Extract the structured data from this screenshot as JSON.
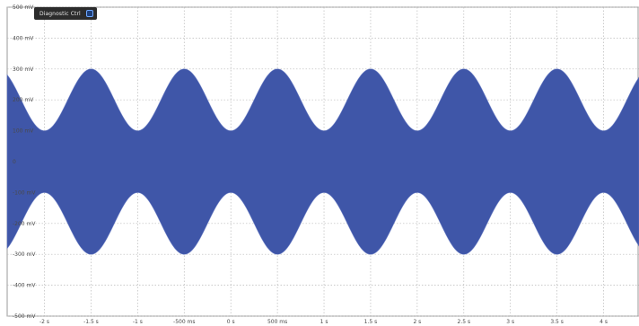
{
  "badge": {
    "label": "Diagnostic Ctrl",
    "icon": "square-outline-icon"
  },
  "colors": {
    "signal": "#3f56a8",
    "grid": "#b9b9b9",
    "badge_bg": "#2c2c2c",
    "badge_icon": "#6fa8ff"
  },
  "chart_data": {
    "type": "area",
    "title": "",
    "xlabel": "",
    "ylabel": "",
    "grid": true,
    "y_ticks": [
      "500 mV",
      "400 mV",
      "300 mV",
      "200 mV",
      "100 mV",
      "0",
      "-100 mV",
      "-200 mV",
      "-300 mV",
      "-400 mV",
      "-500 mV"
    ],
    "y_tick_values": [
      500,
      400,
      300,
      200,
      100,
      0,
      -100,
      -200,
      -300,
      -400,
      -500
    ],
    "x_ticks": [
      "-2 s",
      "-1.5 s",
      "-1 s",
      "-500 ms",
      "0 s",
      "500 ms",
      "1 s",
      "1.5 s",
      "2 s",
      "2.5 s",
      "3 s",
      "3.5 s",
      "4 s"
    ],
    "x_tick_values": [
      -2,
      -1.5,
      -1,
      -0.5,
      0,
      0.5,
      1,
      1.5,
      2,
      2.5,
      3,
      3.5,
      4
    ],
    "xlim": [
      -2.4,
      4.38
    ],
    "ylim": [
      -500,
      500
    ],
    "unit_x": "s",
    "unit_y": "mV",
    "envelope": {
      "description_free": true,
      "center_mV": 200,
      "amplitude_mV": 100,
      "period_s": 1,
      "phase_peak_s": -1.5
    },
    "series": []
  }
}
